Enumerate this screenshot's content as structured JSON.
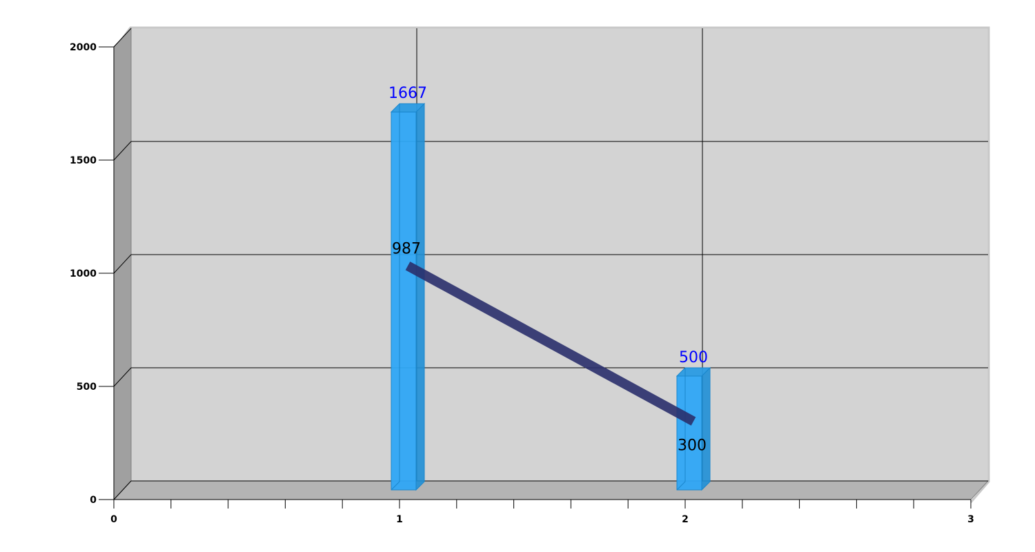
{
  "chart_data": {
    "type": "bar",
    "title": "",
    "xlabel": "",
    "ylabel": "",
    "xlim": [
      0,
      3
    ],
    "ylim": [
      0,
      2000
    ],
    "x_ticks": [
      0,
      1,
      2,
      3
    ],
    "y_ticks": [
      0,
      500,
      1000,
      1500,
      2000
    ],
    "grid": true,
    "three_d": true,
    "series": [
      {
        "kind": "bar",
        "x": [
          1,
          2
        ],
        "values": [
          1667,
          500
        ],
        "labels": [
          "1667",
          "500"
        ],
        "color": "#2fa7f5",
        "label_color": "#0000ff"
      },
      {
        "kind": "line",
        "x": [
          1,
          2
        ],
        "values": [
          987,
          300
        ],
        "labels": [
          "987",
          "300"
        ],
        "color": "#2a2f6b",
        "label_color": "#000000"
      }
    ]
  },
  "colors": {
    "wall": "#d3d3d3",
    "side_wall": "#a0a0a0",
    "floor": "#b4b4b4",
    "grid": "#000000"
  }
}
